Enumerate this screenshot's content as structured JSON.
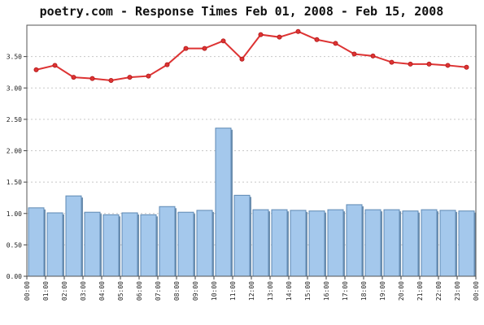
{
  "chart_data": {
    "type": "bar",
    "title": "poetry.com - Response Times Feb 01, 2008 - Feb 15, 2008",
    "xlabel": "",
    "ylabel": "",
    "ylim": [
      0,
      4.0
    ],
    "y_ticks": [
      "0.00",
      "0.50",
      "1.00",
      "1.50",
      "2.00",
      "2.50",
      "3.00",
      "3.50"
    ],
    "y_tick_values": [
      0,
      0.5,
      1.0,
      1.5,
      2.0,
      2.5,
      3.0,
      3.5
    ],
    "x_tick_labels": [
      "00:00",
      "01:00",
      "02:00",
      "03:00",
      "04:00",
      "05:00",
      "06:00",
      "07:00",
      "08:00",
      "09:00",
      "10:00",
      "11:00",
      "12:00",
      "13:00",
      "14:00",
      "15:00",
      "16:00",
      "17:00",
      "18:00",
      "19:00",
      "20:00",
      "21:00",
      "22:00",
      "23:00",
      "00:00"
    ],
    "grid": true,
    "series": [
      {
        "type": "bar",
        "color": "#a4c8ec",
        "edge_color": "#5e89b3",
        "values": [
          1.09,
          1.01,
          1.28,
          1.02,
          0.98,
          1.01,
          0.98,
          1.11,
          1.02,
          1.05,
          2.36,
          1.29,
          1.06,
          1.06,
          1.05,
          1.04,
          1.06,
          1.14,
          1.06,
          1.06,
          1.04,
          1.06,
          1.05,
          1.04
        ]
      },
      {
        "type": "line",
        "color": "#dd3333",
        "values": [
          3.29,
          3.36,
          3.17,
          3.15,
          3.12,
          3.17,
          3.19,
          3.37,
          3.63,
          3.63,
          3.75,
          3.46,
          3.85,
          3.81,
          3.9,
          3.77,
          3.71,
          3.54,
          3.51,
          3.41,
          3.38,
          3.38,
          3.36,
          3.33
        ]
      }
    ]
  }
}
